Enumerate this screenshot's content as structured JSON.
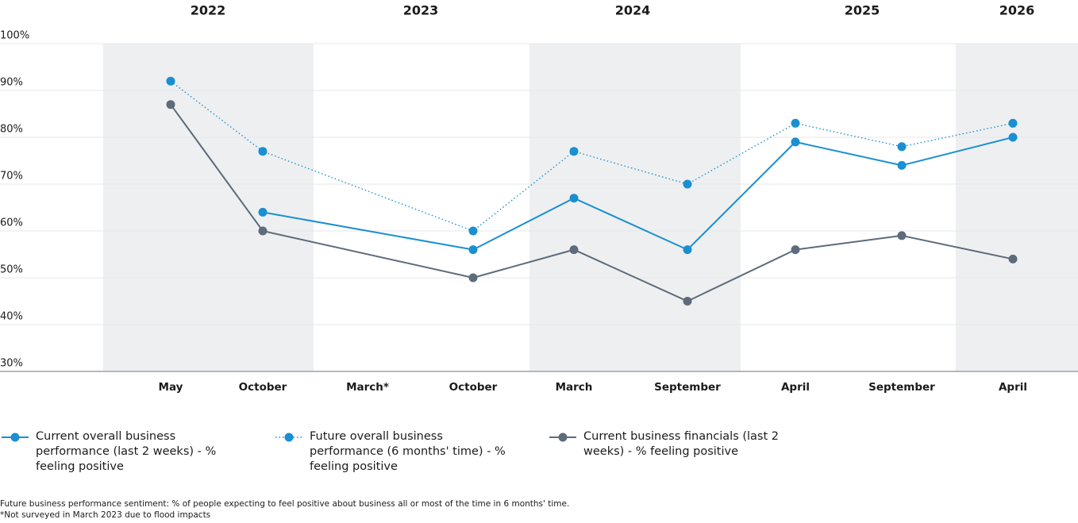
{
  "chart_data": {
    "type": "line",
    "x_groups": [
      "2022",
      "2023",
      "2024",
      "2025",
      "2026"
    ],
    "categories": [
      "May",
      "October",
      "March*",
      "October",
      "March",
      "September",
      "April",
      "September",
      "April"
    ],
    "series": [
      {
        "name": "Current overall business performance (last 2 weeks) - % feeling positive",
        "color": "#1a8fd1",
        "line_style": "solid",
        "values": [
          null,
          64,
          null,
          56,
          67,
          56,
          79,
          74,
          80
        ]
      },
      {
        "name": "Future overall business performance (6 months' time) - % feeling positive",
        "color": "#1a8fd1",
        "line_style": "dotted",
        "values": [
          92,
          77,
          null,
          60,
          77,
          70,
          83,
          78,
          83
        ]
      },
      {
        "name": "Current business financials (last 2 weeks) - % feeling positive",
        "color": "#5d6b7a",
        "line_style": "solid",
        "values": [
          87,
          60,
          null,
          50,
          56,
          45,
          56,
          59,
          54
        ]
      }
    ],
    "connect_gaps": true,
    "ylim": [
      30,
      100
    ],
    "yticks": [
      {
        "value": 30,
        "label": "30%"
      },
      {
        "value": 40,
        "label": "40%"
      },
      {
        "value": 50,
        "label": "50%"
      },
      {
        "value": 60,
        "label": "60%"
      },
      {
        "value": 70,
        "label": "70%"
      },
      {
        "value": 80,
        "label": "80%"
      },
      {
        "value": 90,
        "label": "90%"
      },
      {
        "value": 100,
        "label": "100%"
      }
    ],
    "grid": true,
    "notes": [
      "Future business performance sentiment: % of people expecting to feel positive about business all or most of the time in 6 months' time.",
      "*Not surveyed in March 2023 due to flood impacts"
    ]
  }
}
